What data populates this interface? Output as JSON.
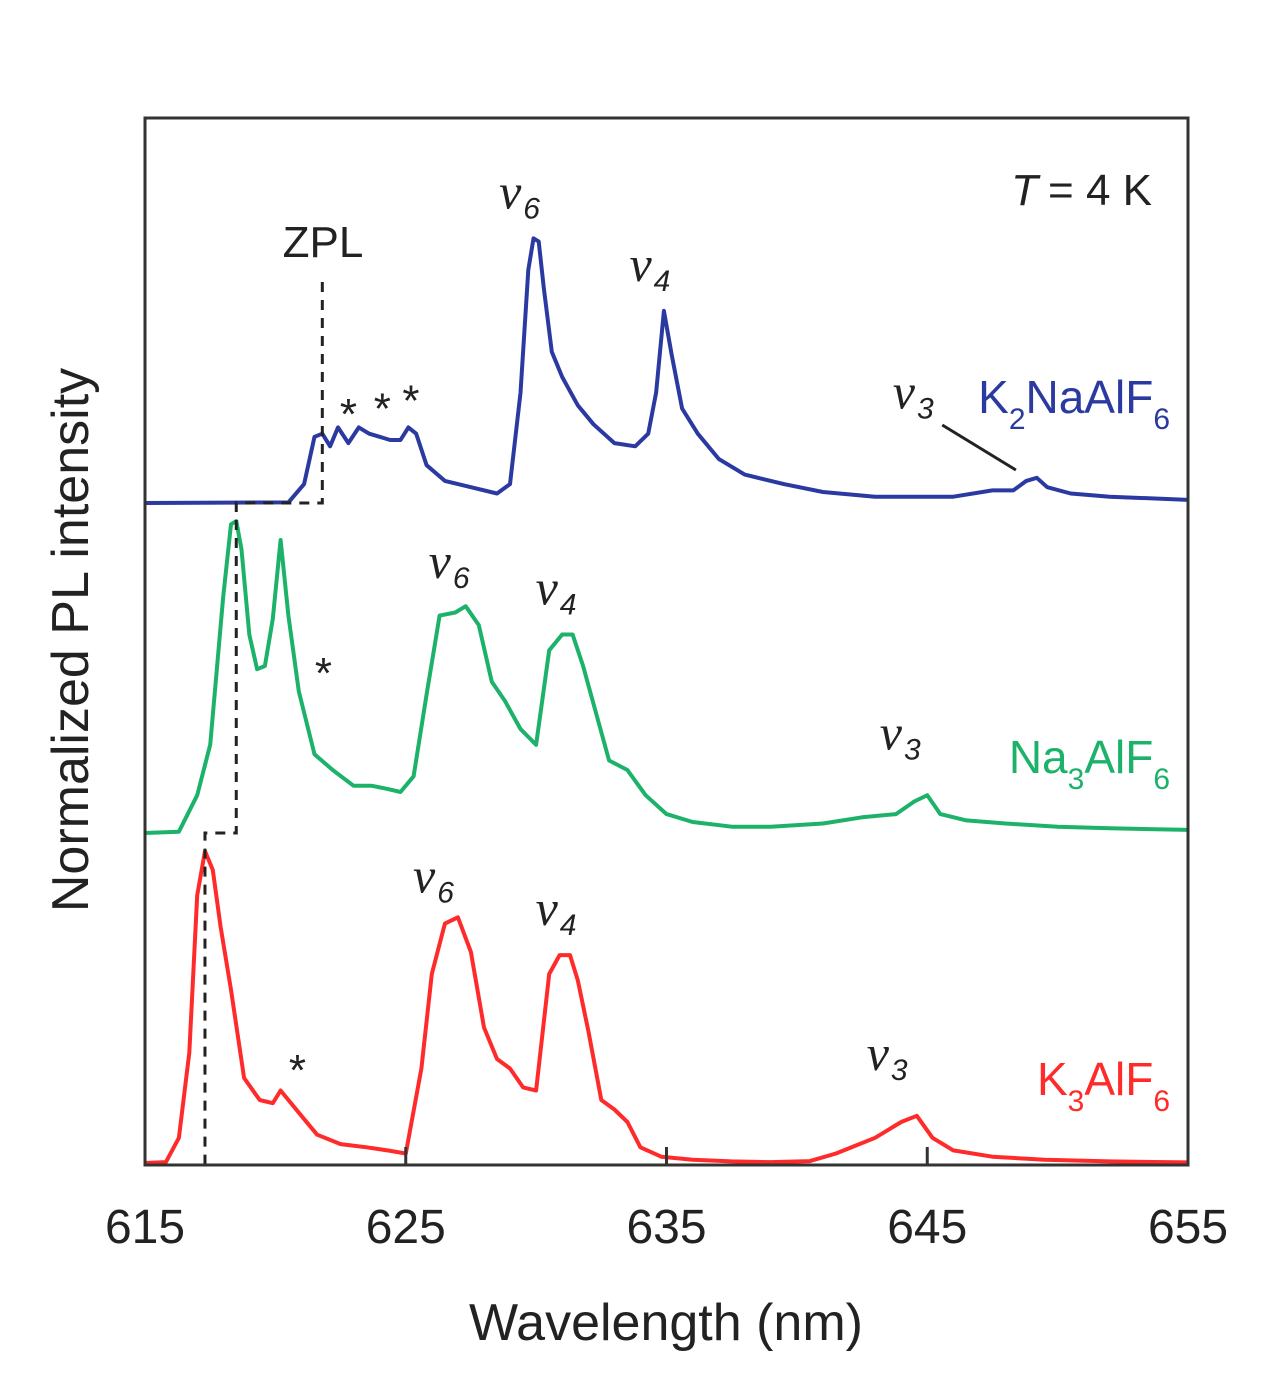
{
  "chart_data": {
    "type": "line",
    "title": "",
    "xlabel": "Wavelength (nm)",
    "ylabel": "Normalized PL intensity",
    "xlim": [
      615,
      655
    ],
    "ylim": [
      0,
      1
    ],
    "x_ticks": [
      615,
      625,
      635,
      645,
      655
    ],
    "x_tick_labels": [
      "615",
      "625",
      "635",
      "645",
      "655"
    ],
    "temperature_label": "T = 4 K",
    "temperature_var": "T",
    "temperature_value": "= 4 K",
    "zpl_label": "ZPL",
    "series": [
      {
        "name": "K2NaAlF6",
        "label_main_1": "K",
        "label_sub_1": "2",
        "label_main_2": "NaAlF",
        "label_sub_2": "6",
        "color": "#2b3aa0",
        "offset": 0.66,
        "scale": 0.315,
        "zpl_nm": 621.8,
        "x": [
          615,
          620.5,
          621.1,
          621.5,
          621.8,
          622.1,
          622.4,
          622.8,
          623.2,
          623.6,
          624.0,
          624.4,
          624.8,
          625.1,
          625.4,
          625.8,
          626.5,
          627.5,
          628.5,
          629.0,
          629.4,
          629.7,
          629.9,
          630.1,
          630.3,
          630.6,
          631.0,
          631.6,
          632.2,
          633.0,
          633.8,
          634.3,
          634.6,
          634.9,
          635.2,
          635.6,
          636.2,
          637.0,
          638.0,
          639.5,
          641.0,
          643.0,
          644.0,
          646.0,
          647.5,
          648.3,
          648.8,
          649.2,
          649.6,
          650.5,
          652.0,
          653.5,
          655.0
        ],
        "y": [
          0.0,
          0.002,
          0.06,
          0.21,
          0.22,
          0.18,
          0.24,
          0.19,
          0.24,
          0.22,
          0.21,
          0.2,
          0.2,
          0.24,
          0.22,
          0.12,
          0.07,
          0.05,
          0.03,
          0.06,
          0.35,
          0.74,
          0.84,
          0.83,
          0.68,
          0.48,
          0.4,
          0.31,
          0.25,
          0.19,
          0.18,
          0.22,
          0.35,
          0.61,
          0.47,
          0.3,
          0.22,
          0.14,
          0.09,
          0.06,
          0.035,
          0.02,
          0.02,
          0.02,
          0.04,
          0.04,
          0.07,
          0.08,
          0.05,
          0.03,
          0.02,
          0.015,
          0.01
        ],
        "annotations": {
          "nu6": {
            "sym": "ν",
            "sub": "6",
            "x_nm": 629.9
          },
          "nu4": {
            "sym": "ν",
            "sub": "4",
            "x_nm": 634.9
          },
          "nu3": {
            "sym": "ν",
            "sub": "3",
            "x_nm": 645.0
          },
          "stars": [
            "*",
            "*",
            "*"
          ],
          "star_x_nm": [
            622.8,
            624.1,
            625.2
          ]
        }
      },
      {
        "name": "Na3AlF6",
        "label_main_1": "Na",
        "label_sub_1": "3",
        "label_main_2": "AlF",
        "label_sub_2": "6",
        "color": "#1db26a",
        "offset": 0.33,
        "scale": 0.315,
        "zpl_nm": 618.5,
        "x": [
          615,
          616.3,
          617.0,
          617.5,
          618.0,
          618.3,
          618.5,
          618.7,
          619.0,
          619.3,
          619.6,
          619.9,
          620.2,
          620.5,
          620.9,
          621.5,
          622.2,
          623.0,
          623.7,
          624.3,
          624.8,
          625.3,
          625.8,
          626.3,
          626.9,
          627.3,
          627.8,
          628.3,
          628.8,
          629.4,
          630.0,
          630.5,
          631.0,
          631.4,
          631.8,
          632.2,
          632.8,
          633.5,
          634.2,
          635.0,
          636.0,
          637.5,
          639.0,
          641.0,
          642.5,
          643.8,
          644.5,
          645.0,
          645.5,
          646.5,
          648.0,
          650.0,
          652.0,
          655.0
        ],
        "y": [
          0.0,
          0.004,
          0.12,
          0.28,
          0.75,
          0.98,
          0.99,
          0.9,
          0.63,
          0.52,
          0.53,
          0.68,
          0.93,
          0.69,
          0.45,
          0.25,
          0.2,
          0.15,
          0.15,
          0.14,
          0.13,
          0.18,
          0.44,
          0.69,
          0.7,
          0.72,
          0.66,
          0.48,
          0.42,
          0.33,
          0.28,
          0.58,
          0.63,
          0.63,
          0.53,
          0.41,
          0.23,
          0.2,
          0.12,
          0.06,
          0.035,
          0.02,
          0.02,
          0.03,
          0.05,
          0.06,
          0.1,
          0.12,
          0.06,
          0.04,
          0.03,
          0.02,
          0.015,
          0.01
        ],
        "annotations": {
          "nu6": {
            "sym": "ν",
            "sub": "6",
            "x_nm": 627.2
          },
          "nu4": {
            "sym": "ν",
            "sub": "4",
            "x_nm": 631.3
          },
          "nu3": {
            "sym": "ν",
            "sub": "3",
            "x_nm": 644.5
          },
          "stars": [
            "*"
          ],
          "star_x_nm": [
            621.0
          ]
        }
      },
      {
        "name": "K3AlF6",
        "label_main_1": "K",
        "label_sub_1": "3",
        "label_main_2": "AlF",
        "label_sub_2": "6",
        "color": "#ff2b2b",
        "offset": 0.0,
        "scale": 0.315,
        "zpl_nm": 617.3,
        "x": [
          615,
          615.8,
          616.3,
          616.7,
          617.0,
          617.3,
          617.6,
          617.9,
          618.3,
          618.8,
          619.4,
          619.9,
          620.2,
          620.5,
          621.0,
          621.6,
          622.5,
          623.5,
          624.3,
          625.0,
          625.6,
          626.0,
          626.5,
          627.0,
          627.5,
          628.0,
          628.5,
          629.0,
          629.5,
          630.0,
          630.5,
          630.9,
          631.3,
          631.6,
          632.0,
          632.5,
          633.0,
          633.5,
          634.0,
          634.8,
          636.0,
          637.5,
          639.0,
          640.5,
          641.5,
          643.0,
          644.0,
          644.6,
          645.2,
          646.0,
          647.5,
          649.5,
          652.0,
          655.0
        ],
        "y": [
          0.0,
          0.003,
          0.08,
          0.35,
          0.85,
          0.99,
          0.93,
          0.75,
          0.55,
          0.27,
          0.2,
          0.19,
          0.23,
          0.2,
          0.15,
          0.09,
          0.06,
          0.05,
          0.04,
          0.03,
          0.3,
          0.6,
          0.76,
          0.78,
          0.67,
          0.43,
          0.33,
          0.3,
          0.24,
          0.23,
          0.6,
          0.66,
          0.66,
          0.58,
          0.42,
          0.2,
          0.17,
          0.13,
          0.05,
          0.02,
          0.01,
          0.005,
          0.003,
          0.006,
          0.03,
          0.08,
          0.13,
          0.15,
          0.08,
          0.04,
          0.02,
          0.01,
          0.005,
          0.002
        ],
        "annotations": {
          "nu6": {
            "sym": "ν",
            "sub": "6",
            "x_nm": 626.6
          },
          "nu4": {
            "sym": "ν",
            "sub": "4",
            "x_nm": 631.3
          },
          "nu3": {
            "sym": "ν",
            "sub": "3",
            "x_nm": 644.0
          },
          "stars": [
            "*"
          ],
          "star_x_nm": [
            620.0
          ]
        }
      }
    ]
  }
}
